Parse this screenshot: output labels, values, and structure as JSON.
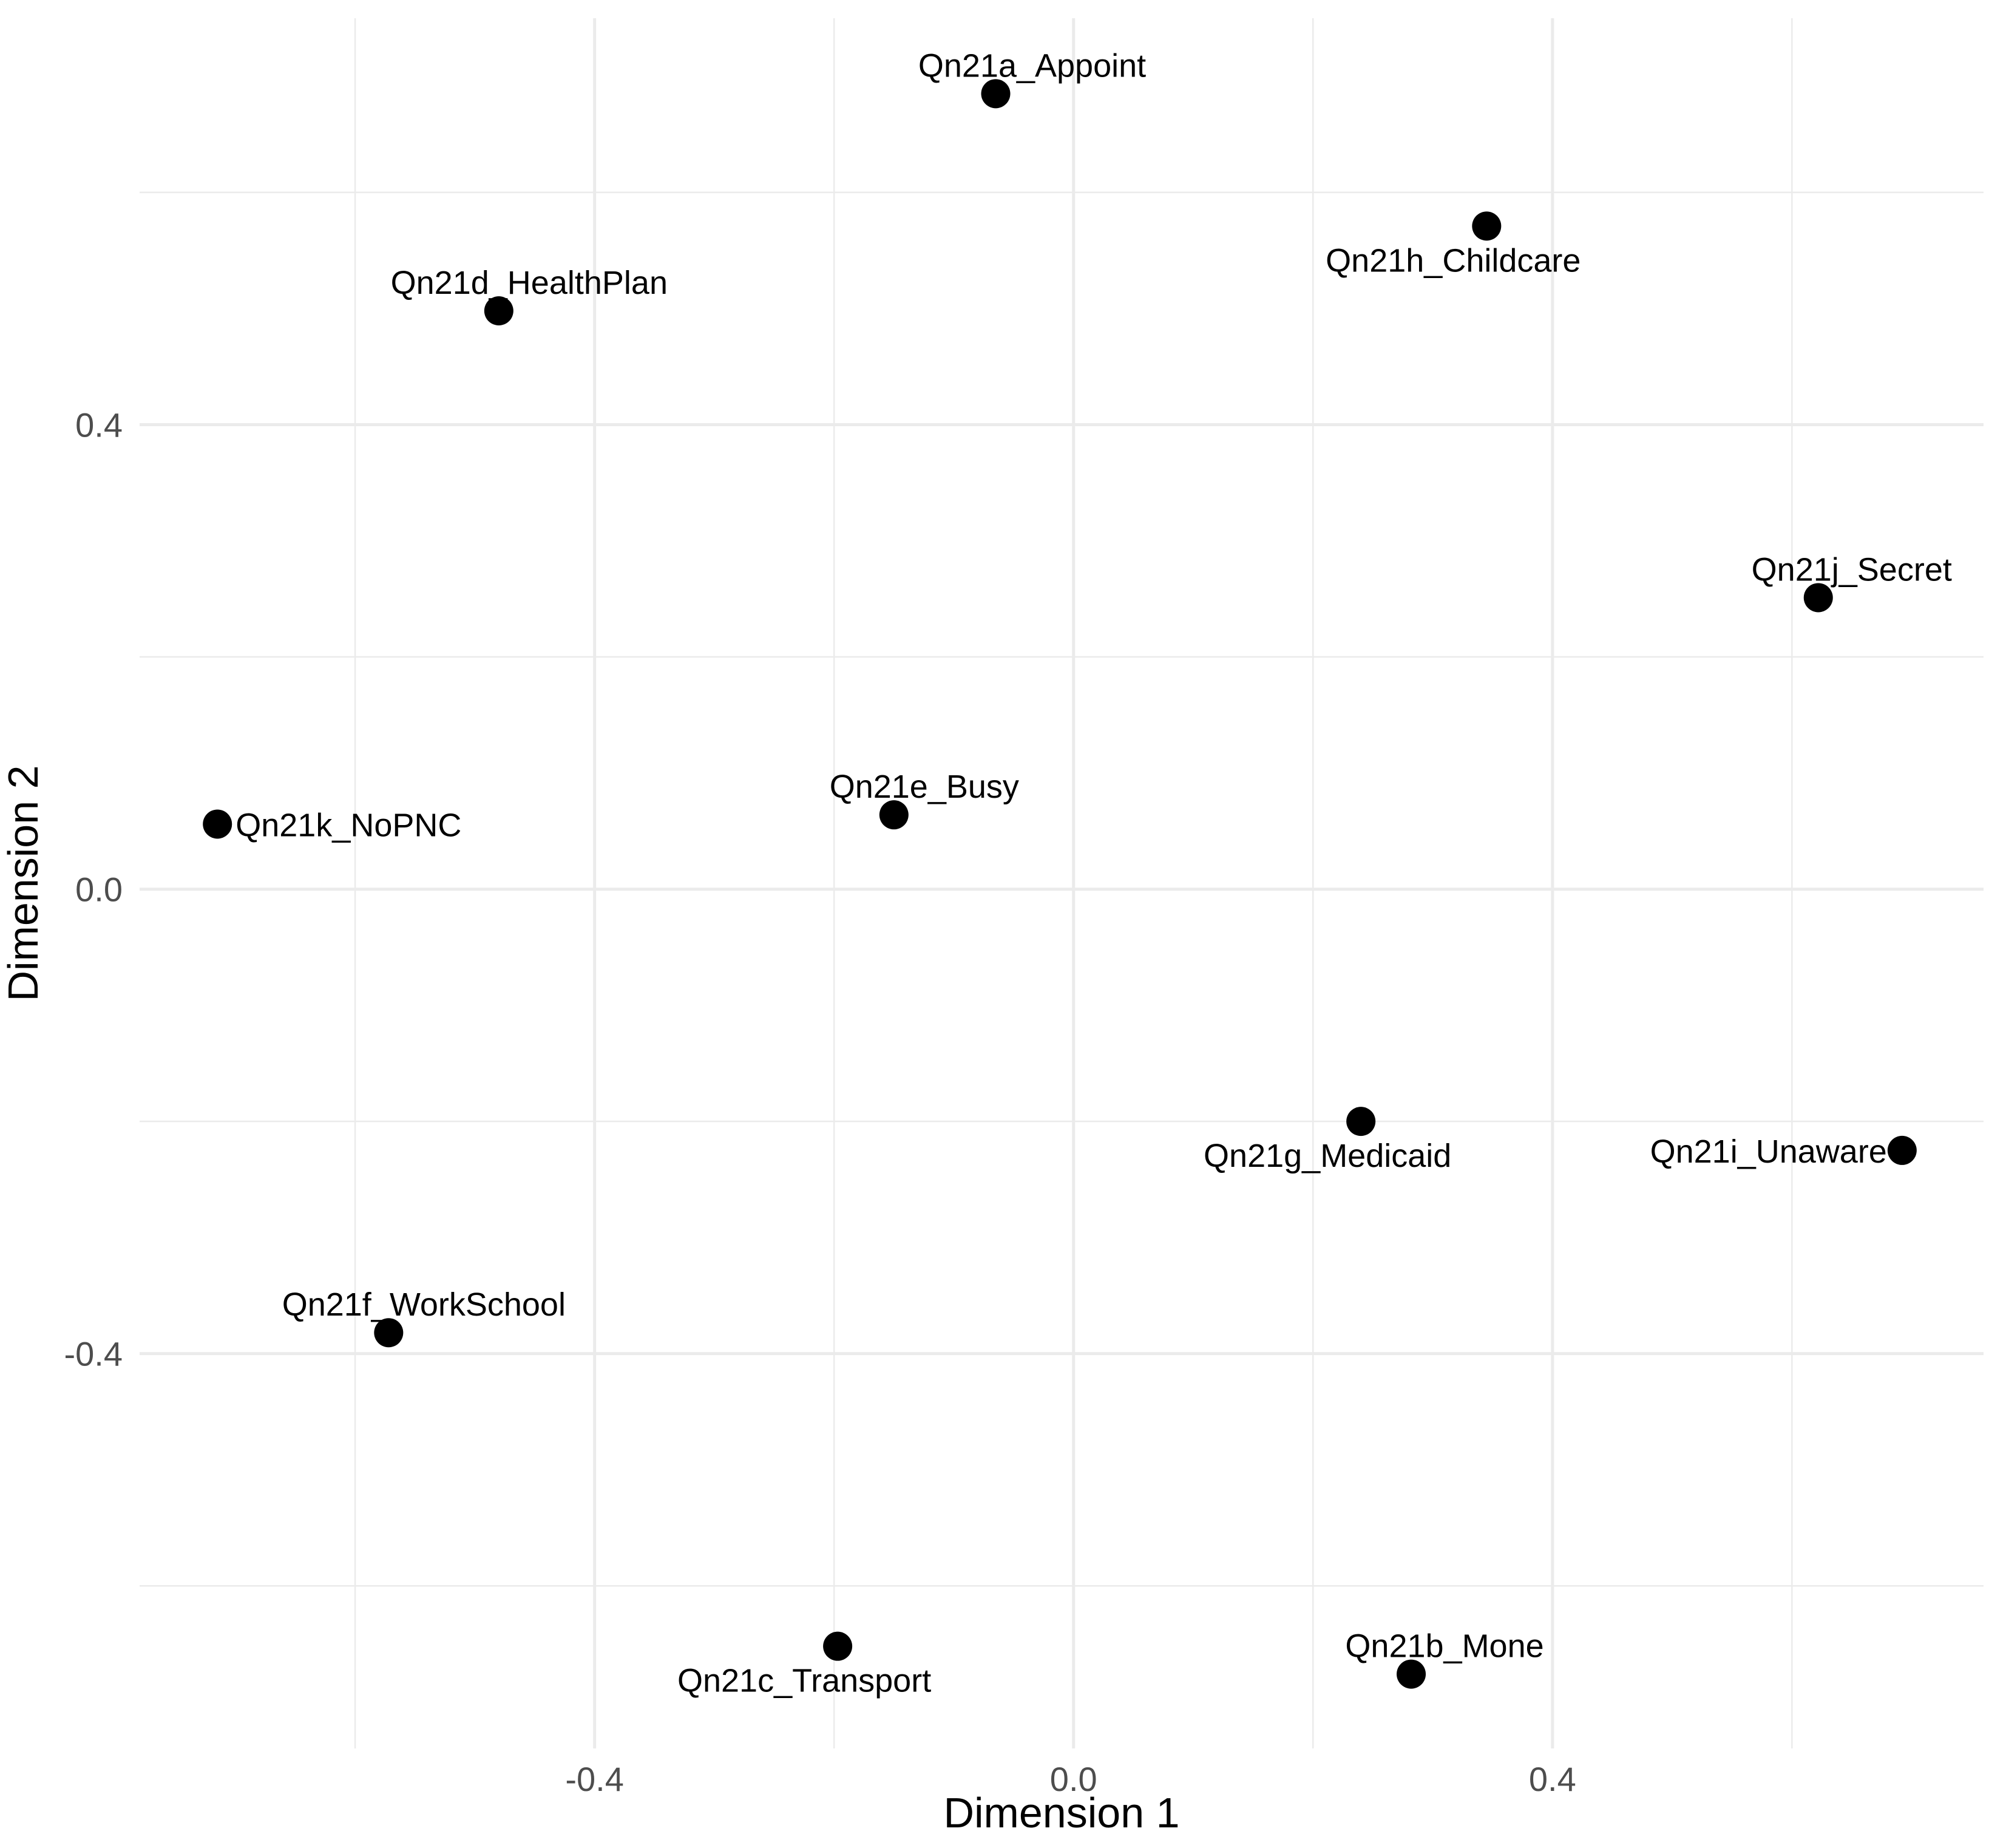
{
  "chart_data": {
    "type": "scatter",
    "title": "",
    "xlabel": "Dimension 1",
    "ylabel": "Dimension 2",
    "xlim": [
      -0.78,
      0.76
    ],
    "ylim": [
      -0.74,
      0.75
    ],
    "x_ticks": [
      -0.4,
      0.0,
      0.4
    ],
    "x_tick_labels": [
      "-0.4",
      "0.0",
      "0.4"
    ],
    "y_ticks": [
      -0.4,
      0.0,
      0.4
    ],
    "y_tick_labels": [
      "-0.4",
      "0.0",
      "0.4"
    ],
    "grid": true,
    "legend": "none",
    "point_color": "#000000",
    "gridline_color": "#ebebeb",
    "points": [
      {
        "label": "Qn21a_Appoint",
        "x": -0.065,
        "y": 0.685
      },
      {
        "label": "Qn21h_Childcare",
        "x": 0.345,
        "y": 0.571
      },
      {
        "label": "Qn21d_HealthPlan",
        "x": -0.48,
        "y": 0.498
      },
      {
        "label": "Qn21j_Secret",
        "x": 0.622,
        "y": 0.251
      },
      {
        "label": "Qn21e_Busy",
        "x": -0.15,
        "y": 0.064
      },
      {
        "label": "Qn21k_NoPNC",
        "x": -0.715,
        "y": 0.056
      },
      {
        "label": "Qn21g_Medicaid",
        "x": 0.24,
        "y": -0.2
      },
      {
        "label": "Qn21i_Unaware",
        "x": 0.692,
        "y": -0.225
      },
      {
        "label": "Qn21f_WorkSchool",
        "x": -0.572,
        "y": -0.382
      },
      {
        "label": "Qn21c_Transport",
        "x": -0.197,
        "y": -0.652
      },
      {
        "label": "Qn21b_Mone",
        "x": 0.282,
        "y": -0.676
      }
    ]
  }
}
